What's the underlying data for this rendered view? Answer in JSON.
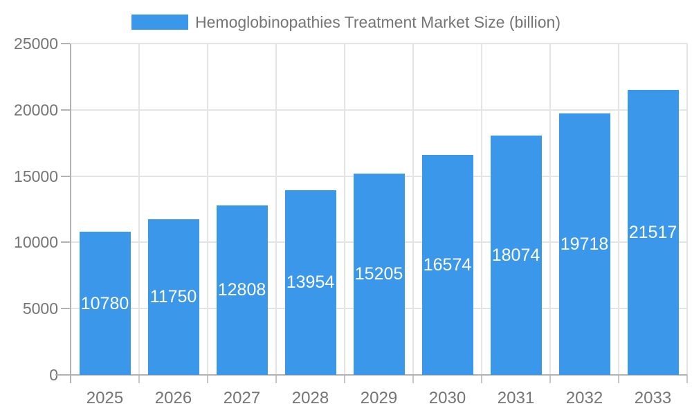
{
  "legend": {
    "label": "Hemoglobinopathies Treatment Market Size (billion)",
    "swatch_color": "#3b97ea"
  },
  "chart_data": {
    "type": "bar",
    "title": "Hemoglobinopathies Treatment Market Size (billion)",
    "series_name": "Hemoglobinopathies Treatment Market Size (billion)",
    "categories": [
      "2025",
      "2026",
      "2027",
      "2028",
      "2029",
      "2030",
      "2031",
      "2032",
      "2033"
    ],
    "values": [
      10780,
      11750,
      12808,
      13954,
      15205,
      16574,
      18074,
      19718,
      21517
    ],
    "value_labels": [
      "10780",
      "11750",
      "12808",
      "13954",
      "15205",
      "16574",
      "18074",
      "19718",
      "21517"
    ],
    "xlabel": "",
    "ylabel": "",
    "ylim": [
      0,
      25000
    ],
    "y_ticks": [
      0,
      5000,
      10000,
      15000,
      20000,
      25000
    ],
    "y_tick_labels": [
      "0",
      "5000",
      "10000",
      "15000",
      "20000",
      "25000"
    ],
    "grid": "horizontal and vertical light gridlines on",
    "legend_position": "top-center",
    "bar_color": "#3b97ea",
    "value_label_color": "#ffffff",
    "axis_text_color": "#757575",
    "grid_color": "#e4e4e4",
    "axis_line_color": "#b2b2b2"
  }
}
